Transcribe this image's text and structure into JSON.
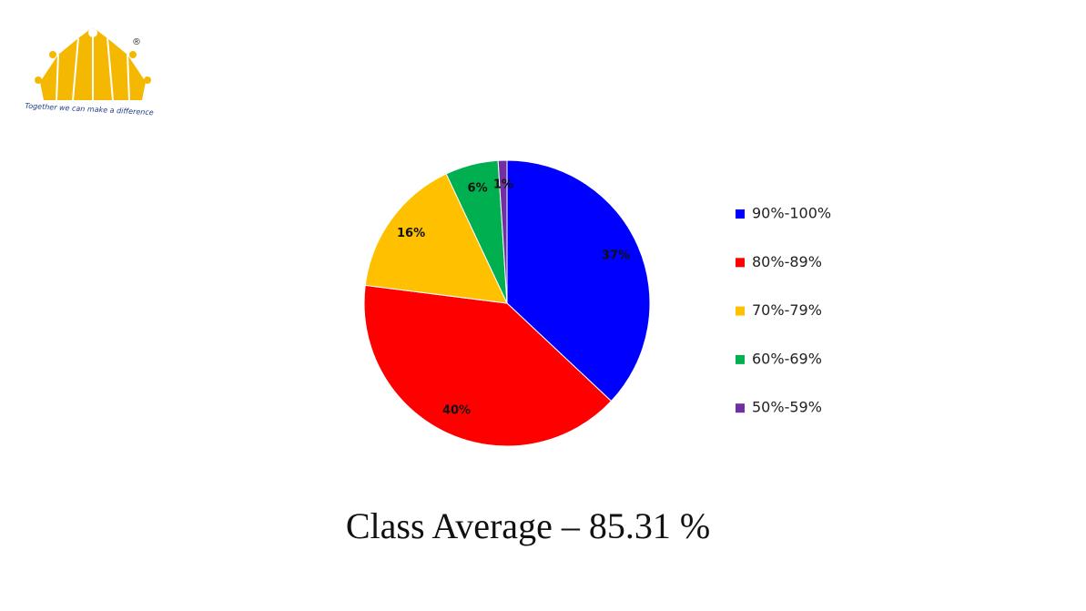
{
  "logo": {
    "mark": "®",
    "tagline": "Together we can make a difference"
  },
  "chart_data": {
    "type": "pie",
    "title": "Class Average – 85.31 %",
    "categories": [
      "90%-100%",
      "80%-89%",
      "70%-79%",
      "60%-69%",
      "50%-59%"
    ],
    "values": [
      37,
      40,
      16,
      6,
      1
    ],
    "value_labels": [
      "37%",
      "40%",
      "16%",
      "6%",
      "1%"
    ],
    "colors": [
      "#0000ff",
      "#ff0000",
      "#ffc000",
      "#00b050",
      "#7030a0"
    ],
    "legend": "right"
  }
}
